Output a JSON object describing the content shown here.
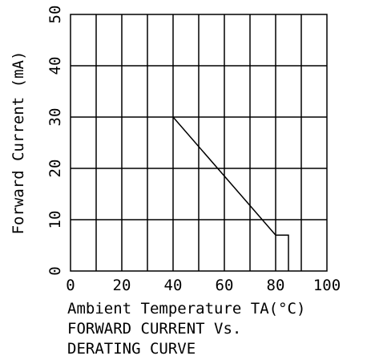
{
  "chart_data": {
    "type": "line",
    "title_lines": [
      "FORWARD CURRENT Vs.",
      "DERATING CURVE"
    ],
    "xlabel": "Ambient Temperature TA(°C)",
    "ylabel": "Forward Current (mA)",
    "xlim": [
      0,
      100
    ],
    "ylim": [
      0,
      50
    ],
    "x_ticks": [
      0,
      20,
      40,
      60,
      80,
      100
    ],
    "x_tick_labels": [
      "0",
      "20",
      "40",
      "60",
      "80",
      "100"
    ],
    "y_ticks": [
      0,
      10,
      20,
      30,
      40,
      50
    ],
    "y_tick_labels": [
      "0",
      "10",
      "20",
      "30",
      "40",
      "50"
    ],
    "x_grid_step": 10,
    "y_grid_step": 10,
    "grid": true,
    "series": [
      {
        "x": [
          40,
          80,
          85,
          85
        ],
        "y": [
          30,
          7,
          7,
          0
        ]
      }
    ]
  }
}
